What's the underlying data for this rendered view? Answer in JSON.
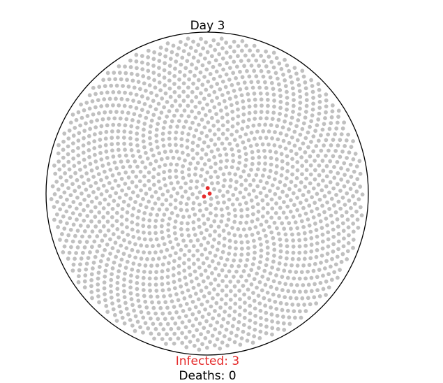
{
  "chart_data": {
    "type": "scatter",
    "title": "Day 3",
    "layout": "sunflower spiral disc",
    "population": 2000,
    "infected": 3,
    "deaths": 0,
    "infected_label": "Infected: 3",
    "deaths_label": "Deaths: 0",
    "infected_indices": [
      0,
      1,
      2
    ],
    "colors": {
      "healthy": "#c0c0c0",
      "infected": "#e52b2b",
      "outline": "#000000",
      "infected_text": "#e52b2b"
    },
    "grid": false,
    "legend": "none"
  }
}
